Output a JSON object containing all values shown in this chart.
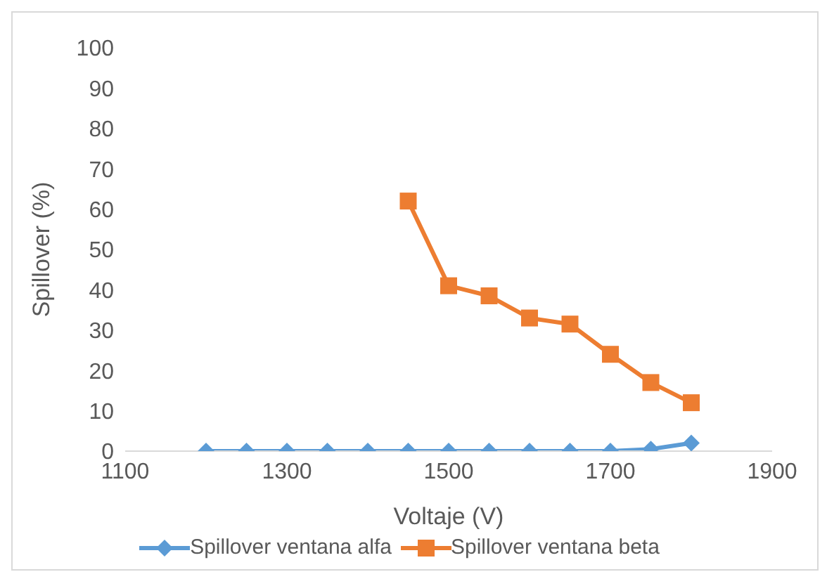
{
  "chart_data": {
    "type": "line",
    "xlabel": "Voltaje (V)",
    "ylabel": "Spillover (%)",
    "xlim": [
      1100,
      1900
    ],
    "xticks": [
      1100,
      1300,
      1500,
      1700,
      1900
    ],
    "ylim": [
      0,
      100
    ],
    "yticks": [
      0,
      10,
      20,
      30,
      40,
      50,
      60,
      70,
      80,
      90,
      100
    ],
    "grid": false,
    "legend": "bottom",
    "line_style": "solid",
    "series": [
      {
        "name": "Spillover ventana alfa",
        "color": "#5b9bd5",
        "marker": "diamond",
        "x": [
          1200,
          1250,
          1300,
          1350,
          1400,
          1450,
          1500,
          1550,
          1600,
          1650,
          1700,
          1750,
          1800
        ],
        "values": [
          0,
          0,
          0,
          0,
          0,
          0,
          0,
          0,
          0,
          0,
          0,
          0.5,
          2
        ]
      },
      {
        "name": "Spillover ventana beta",
        "color": "#ed7d31",
        "marker": "square",
        "x": [
          1450,
          1500,
          1550,
          1600,
          1650,
          1700,
          1750,
          1800
        ],
        "values": [
          62,
          41,
          38.5,
          33,
          31.5,
          24,
          17,
          12
        ]
      }
    ]
  }
}
